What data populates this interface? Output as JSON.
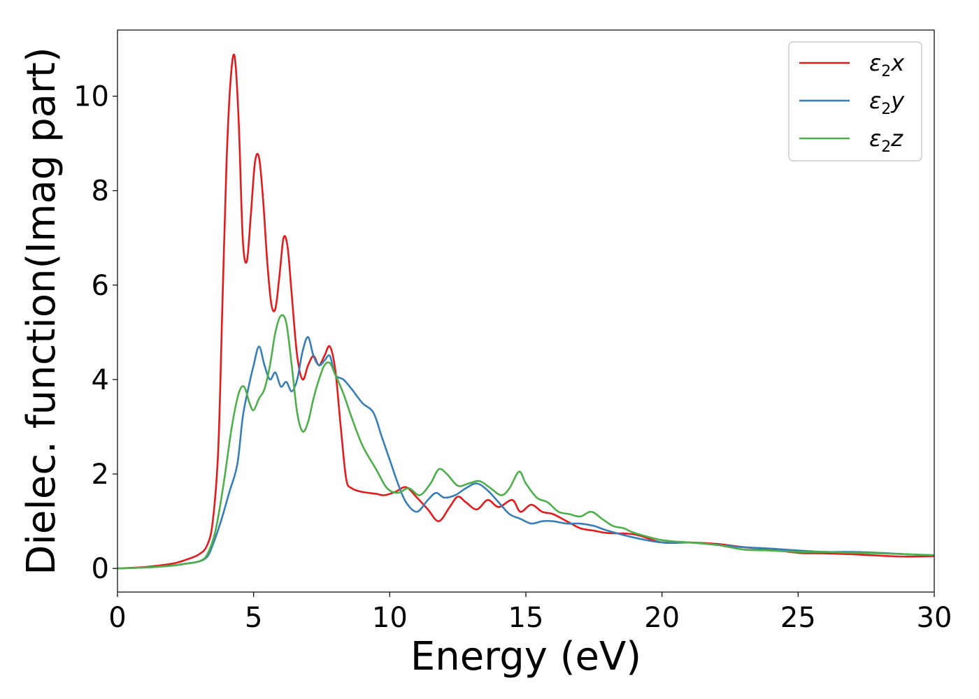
{
  "chart_data": {
    "type": "line",
    "xlabel": "Energy (eV)",
    "ylabel": "Dielec. function(Imag part)",
    "xlim": [
      0,
      30
    ],
    "ylim": [
      -0.5,
      11.4
    ],
    "xticks": [
      0,
      5,
      10,
      15,
      20,
      25,
      30
    ],
    "yticks": [
      0,
      2,
      4,
      6,
      8,
      10
    ],
    "grid": false,
    "legend_position": "top-right",
    "series": [
      {
        "name": "ε₂x",
        "legend": {
          "main": "ε",
          "sub": "2",
          "axis": "x"
        },
        "color": "#e41a1c",
        "x": [
          0,
          1,
          2,
          2.5,
          3,
          3.3,
          3.5,
          3.7,
          3.85,
          4.0,
          4.15,
          4.3,
          4.45,
          4.6,
          4.75,
          4.9,
          5.05,
          5.2,
          5.35,
          5.5,
          5.65,
          5.8,
          5.95,
          6.1,
          6.25,
          6.4,
          6.6,
          6.8,
          7.0,
          7.2,
          7.4,
          7.6,
          7.8,
          8.0,
          8.2,
          8.4,
          8.6,
          9.0,
          9.5,
          9.8,
          10.2,
          10.6,
          11.0,
          11.4,
          11.8,
          12.2,
          12.5,
          12.8,
          13.2,
          13.6,
          14.0,
          14.5,
          14.8,
          15.2,
          15.6,
          16.0,
          16.5,
          17.0,
          17.5,
          18.0,
          19.0,
          20.0,
          21.0,
          22.0,
          23.0,
          24.0,
          25.0,
          26.0,
          27.0,
          28.0,
          29.0,
          30.0
        ],
        "y": [
          0,
          0.03,
          0.1,
          0.18,
          0.3,
          0.5,
          1.0,
          2.5,
          5.5,
          8.5,
          10.3,
          10.85,
          9.5,
          7.0,
          6.5,
          7.5,
          8.6,
          8.7,
          7.8,
          6.5,
          5.6,
          5.5,
          6.2,
          7.0,
          6.8,
          5.8,
          4.5,
          4.0,
          4.3,
          4.5,
          4.3,
          4.5,
          4.7,
          4.2,
          3.0,
          1.9,
          1.7,
          1.62,
          1.58,
          1.55,
          1.62,
          1.72,
          1.5,
          1.25,
          1.0,
          1.3,
          1.52,
          1.4,
          1.25,
          1.45,
          1.3,
          1.45,
          1.2,
          1.35,
          1.2,
          1.15,
          1.0,
          0.85,
          0.8,
          0.75,
          0.72,
          0.55,
          0.55,
          0.52,
          0.45,
          0.4,
          0.33,
          0.32,
          0.3,
          0.27,
          0.25,
          0.26
        ]
      },
      {
        "name": "ε₂y",
        "legend": {
          "main": "ε",
          "sub": "2",
          "axis": "y"
        },
        "color": "#377eb8",
        "x": [
          0,
          1,
          2,
          2.5,
          3,
          3.3,
          3.5,
          3.8,
          4.1,
          4.4,
          4.6,
          4.8,
          5.0,
          5.2,
          5.4,
          5.6,
          5.8,
          6.0,
          6.2,
          6.4,
          6.6,
          6.8,
          7.0,
          7.2,
          7.4,
          7.6,
          7.8,
          8.0,
          8.3,
          8.6,
          9.0,
          9.4,
          9.7,
          10.0,
          10.3,
          10.6,
          11.0,
          11.4,
          11.7,
          12.0,
          12.4,
          12.8,
          13.2,
          13.6,
          14.0,
          14.4,
          14.8,
          15.2,
          15.6,
          16.0,
          16.5,
          17.0,
          17.5,
          18.0,
          19.0,
          20.0,
          21.0,
          22.0,
          23.0,
          24.0,
          25.0,
          26.0,
          27.0,
          28.0,
          29.0,
          30.0
        ],
        "y": [
          0,
          0.02,
          0.06,
          0.1,
          0.15,
          0.25,
          0.5,
          1.0,
          1.6,
          2.2,
          3.2,
          3.8,
          4.3,
          4.7,
          4.3,
          4.0,
          4.15,
          3.85,
          3.95,
          3.75,
          4.0,
          4.6,
          4.9,
          4.5,
          4.3,
          4.4,
          4.5,
          4.1,
          4.0,
          3.8,
          3.5,
          3.3,
          2.8,
          2.3,
          1.8,
          1.4,
          1.2,
          1.45,
          1.6,
          1.5,
          1.55,
          1.7,
          1.8,
          1.65,
          1.4,
          1.15,
          1.05,
          0.95,
          1.0,
          1.0,
          0.95,
          0.95,
          0.9,
          0.8,
          0.65,
          0.55,
          0.55,
          0.5,
          0.45,
          0.42,
          0.38,
          0.35,
          0.35,
          0.33,
          0.3,
          0.28
        ]
      },
      {
        "name": "ε₂z",
        "legend": {
          "main": "ε",
          "sub": "2",
          "axis": "z"
        },
        "color": "#4daf4a",
        "x": [
          0,
          1,
          2,
          2.5,
          3,
          3.3,
          3.6,
          3.9,
          4.2,
          4.45,
          4.65,
          4.85,
          5.0,
          5.2,
          5.4,
          5.6,
          5.8,
          6.0,
          6.2,
          6.4,
          6.6,
          6.8,
          7.0,
          7.2,
          7.4,
          7.6,
          7.8,
          8.0,
          8.3,
          8.6,
          9.0,
          9.5,
          9.9,
          10.3,
          10.7,
          11.1,
          11.5,
          11.8,
          12.1,
          12.5,
          12.9,
          13.3,
          13.7,
          14.1,
          14.4,
          14.75,
          15.0,
          15.4,
          15.8,
          16.2,
          16.6,
          17.0,
          17.4,
          17.8,
          18.2,
          18.6,
          19.0,
          20.0,
          21.0,
          22.0,
          23.0,
          24.0,
          25.0,
          26.0,
          27.0,
          28.0,
          29.0,
          30.0
        ],
        "y": [
          0,
          0.02,
          0.06,
          0.1,
          0.15,
          0.3,
          0.8,
          1.8,
          3.0,
          3.7,
          3.85,
          3.5,
          3.35,
          3.6,
          3.8,
          4.3,
          5.0,
          5.35,
          5.2,
          4.3,
          3.3,
          2.9,
          3.1,
          3.6,
          4.0,
          4.3,
          4.35,
          4.1,
          3.7,
          3.2,
          2.6,
          2.1,
          1.7,
          1.6,
          1.7,
          1.55,
          1.8,
          2.1,
          2.0,
          1.75,
          1.8,
          1.85,
          1.7,
          1.55,
          1.7,
          2.05,
          1.8,
          1.5,
          1.4,
          1.2,
          1.15,
          1.1,
          1.2,
          1.05,
          0.9,
          0.85,
          0.75,
          0.6,
          0.55,
          0.5,
          0.4,
          0.38,
          0.35,
          0.35,
          0.33,
          0.32,
          0.3,
          0.28
        ]
      }
    ]
  }
}
